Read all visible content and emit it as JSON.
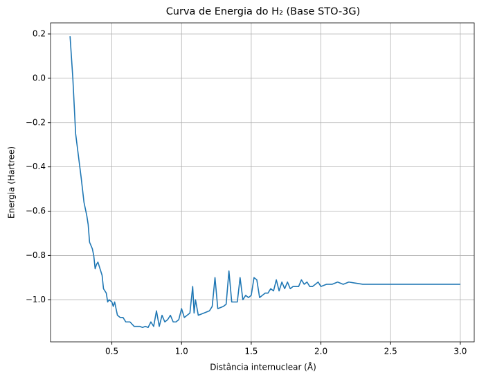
{
  "chart_data": {
    "type": "line",
    "title": "Curva de Energia do H₂ (Base STO-3G)",
    "x_label": "Distância internuclear (Å)",
    "y_label": "Energia (Hartree)",
    "x": [
      0.2,
      0.22,
      0.24,
      0.26,
      0.28,
      0.3,
      0.32,
      0.33,
      0.34,
      0.36,
      0.37,
      0.38,
      0.39,
      0.4,
      0.42,
      0.43,
      0.44,
      0.46,
      0.47,
      0.48,
      0.5,
      0.51,
      0.52,
      0.54,
      0.56,
      0.58,
      0.6,
      0.63,
      0.66,
      0.7,
      0.72,
      0.74,
      0.76,
      0.78,
      0.8,
      0.82,
      0.84,
      0.86,
      0.88,
      0.9,
      0.92,
      0.94,
      0.96,
      0.98,
      1.0,
      1.02,
      1.04,
      1.06,
      1.08,
      1.09,
      1.1,
      1.12,
      1.16,
      1.2,
      1.22,
      1.24,
      1.26,
      1.3,
      1.32,
      1.34,
      1.36,
      1.4,
      1.42,
      1.44,
      1.46,
      1.48,
      1.5,
      1.52,
      1.54,
      1.56,
      1.6,
      1.62,
      1.64,
      1.66,
      1.68,
      1.7,
      1.72,
      1.74,
      1.76,
      1.78,
      1.8,
      1.84,
      1.86,
      1.88,
      1.9,
      1.92,
      1.94,
      1.96,
      1.98,
      2.0,
      2.04,
      2.08,
      2.12,
      2.16,
      2.2,
      2.3,
      2.4,
      2.5,
      2.6,
      2.7,
      2.8,
      2.9,
      3.0
    ],
    "series": [
      {
        "name": "Energia",
        "color": "#1f77b4",
        "values": [
          0.19,
          0.0,
          -0.25,
          -0.35,
          -0.45,
          -0.56,
          -0.62,
          -0.66,
          -0.74,
          -0.77,
          -0.8,
          -0.86,
          -0.84,
          -0.83,
          -0.87,
          -0.89,
          -0.95,
          -0.97,
          -1.01,
          -1.0,
          -1.01,
          -1.03,
          -1.01,
          -1.07,
          -1.08,
          -1.08,
          -1.1,
          -1.1,
          -1.12,
          -1.12,
          -1.125,
          -1.12,
          -1.125,
          -1.1,
          -1.12,
          -1.05,
          -1.12,
          -1.07,
          -1.1,
          -1.09,
          -1.07,
          -1.1,
          -1.1,
          -1.09,
          -1.04,
          -1.08,
          -1.07,
          -1.06,
          -0.94,
          -1.06,
          -1.0,
          -1.07,
          -1.06,
          -1.05,
          -1.03,
          -0.9,
          -1.04,
          -1.03,
          -1.02,
          -0.87,
          -1.01,
          -1.01,
          -0.9,
          -1.0,
          -0.98,
          -0.99,
          -0.98,
          -0.9,
          -0.91,
          -0.99,
          -0.97,
          -0.97,
          -0.95,
          -0.96,
          -0.91,
          -0.96,
          -0.92,
          -0.95,
          -0.92,
          -0.95,
          -0.94,
          -0.94,
          -0.91,
          -0.93,
          -0.92,
          -0.94,
          -0.94,
          -0.93,
          -0.92,
          -0.94,
          -0.93,
          -0.93,
          -0.92,
          -0.93,
          -0.92,
          -0.93,
          -0.93,
          -0.93,
          -0.93,
          -0.93,
          -0.93,
          -0.93,
          -0.93
        ]
      }
    ],
    "xlim": [
      0.06,
      3.1
    ],
    "ylim": [
      -1.19,
      0.25
    ],
    "xticks": [
      {
        "value": 0.5,
        "label": "0.5"
      },
      {
        "value": 1.0,
        "label": "1.0"
      },
      {
        "value": 1.5,
        "label": "1.5"
      },
      {
        "value": 2.0,
        "label": "2.0"
      },
      {
        "value": 2.5,
        "label": "2.5"
      },
      {
        "value": 3.0,
        "label": "3.0"
      }
    ],
    "yticks": [
      {
        "value": -1.0,
        "label": "−1.0"
      },
      {
        "value": -0.8,
        "label": "−0.8"
      },
      {
        "value": -0.6,
        "label": "−0.6"
      },
      {
        "value": -0.4,
        "label": "−0.4"
      },
      {
        "value": -0.2,
        "label": "−0.2"
      },
      {
        "value": 0.0,
        "label": "0.0"
      },
      {
        "value": 0.2,
        "label": "0.2"
      }
    ],
    "grid": true
  }
}
